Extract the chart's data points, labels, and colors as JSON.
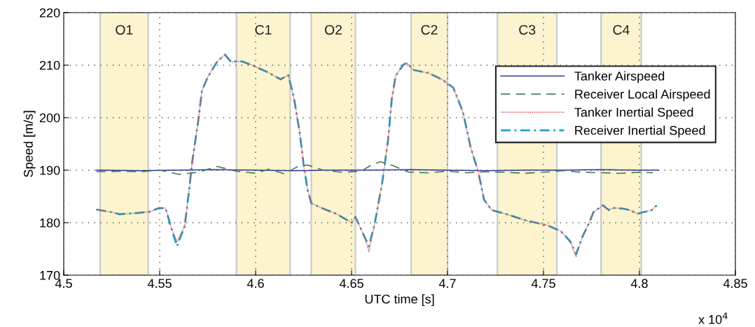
{
  "chart_data": {
    "type": "line",
    "xlabel": "UTC time [s]",
    "ylabel": "Speed [m/s]",
    "annotations": [
      "x 10$^{4}$"
    ],
    "xlim": [
      4.5,
      4.85
    ],
    "xticks": [
      4.5,
      4.55,
      4.6,
      4.65,
      4.7,
      4.75,
      4.8,
      4.85
    ],
    "ylim": [
      170,
      220
    ],
    "yticks": [
      170,
      180,
      190,
      200,
      210,
      220
    ],
    "grid": true,
    "legend": "top right",
    "bands": [
      {
        "axis": "x",
        "from": 4.519,
        "to": 4.544,
        "label": "O1",
        "color": "#fbf4cf"
      },
      {
        "axis": "x",
        "from": 4.59,
        "to": 4.618,
        "label": "C1",
        "color": "#fbf4cf"
      },
      {
        "axis": "x",
        "from": 4.629,
        "to": 4.652,
        "label": "O2",
        "color": "#fbf4cf"
      },
      {
        "axis": "x",
        "from": 4.681,
        "to": 4.7,
        "label": "C2",
        "color": "#fbf4cf"
      },
      {
        "axis": "x",
        "from": 4.726,
        "to": 4.757,
        "label": "C3",
        "color": "#fbf4cf"
      },
      {
        "axis": "x",
        "from": 4.78,
        "to": 4.801,
        "label": "C4",
        "color": "#fbf4cf"
      }
    ],
    "series": [
      {
        "name": "Tanker Airspeed",
        "color": "#3434a0",
        "line_style": "solid",
        "x": [
          4.517,
          4.54,
          4.56,
          4.58,
          4.6,
          4.62,
          4.64,
          4.66,
          4.68,
          4.7,
          4.72,
          4.74,
          4.76,
          4.78,
          4.8,
          4.81
        ],
        "values": [
          190.0,
          189.9,
          190.0,
          190.1,
          190.0,
          189.9,
          190.0,
          190.0,
          190.1,
          190.0,
          189.9,
          190.0,
          190.0,
          190.1,
          190.0,
          190.0
        ]
      },
      {
        "name": "Receiver Local Airspeed",
        "color": "#3f7f4f",
        "line_style": "dashed",
        "x": [
          4.517,
          4.53,
          4.54,
          4.55,
          4.56,
          4.565,
          4.57,
          4.58,
          4.59,
          4.6,
          4.607,
          4.615,
          4.622,
          4.627,
          4.635,
          4.645,
          4.655,
          4.66,
          4.665,
          4.672,
          4.68,
          4.69,
          4.7,
          4.71,
          4.72,
          4.73,
          4.74,
          4.75,
          4.76,
          4.77,
          4.78,
          4.79,
          4.8,
          4.807
        ],
        "values": [
          189.7,
          189.8,
          189.7,
          190.0,
          189.2,
          189.4,
          189.6,
          190.7,
          189.8,
          189.4,
          190.2,
          189.3,
          190.7,
          191.0,
          190.0,
          189.6,
          189.8,
          190.9,
          191.6,
          190.8,
          189.6,
          189.5,
          189.8,
          189.5,
          189.7,
          189.6,
          189.4,
          189.6,
          189.9,
          189.6,
          189.5,
          189.4,
          189.6,
          189.5
        ]
      },
      {
        "name": "Tanker Inertial Speed",
        "color": "#e8403c",
        "line_style": "dotted",
        "x": [
          4.517,
          4.525,
          4.529,
          4.54,
          4.545,
          4.549,
          4.553,
          4.556,
          4.559,
          4.563,
          4.565,
          4.567,
          4.57,
          4.572,
          4.575,
          4.58,
          4.584,
          4.587,
          4.593,
          4.598,
          4.606,
          4.613,
          4.617,
          4.62,
          4.623,
          4.625,
          4.627,
          4.629,
          4.635,
          4.642,
          4.65,
          4.652,
          4.654,
          4.657,
          4.659,
          4.662,
          4.666,
          4.669,
          4.671,
          4.673,
          4.677,
          4.679,
          4.682,
          4.69,
          4.697,
          4.703,
          4.708,
          4.712,
          4.716,
          4.719,
          4.723,
          4.73,
          4.741,
          4.752,
          4.759,
          4.764,
          4.767,
          4.77,
          4.774,
          4.776,
          4.781,
          4.784,
          4.786,
          4.791,
          4.795,
          4.799,
          4.802,
          4.806,
          4.809
        ],
        "values": [
          182.5,
          182.0,
          181.6,
          181.9,
          182.1,
          182.7,
          182.8,
          179.1,
          176.4,
          179.3,
          185.1,
          191.7,
          199.1,
          205.1,
          207.7,
          210.7,
          212.0,
          210.7,
          210.7,
          210.0,
          208.7,
          207.3,
          208.1,
          203.7,
          197.1,
          191.1,
          186.4,
          183.7,
          182.7,
          181.7,
          180.0,
          181.1,
          179.5,
          177.1,
          174.5,
          179.7,
          187.7,
          195.7,
          203.7,
          208.0,
          210.1,
          210.4,
          209.1,
          208.5,
          207.3,
          205.7,
          201.1,
          194.4,
          189.7,
          184.4,
          182.4,
          181.7,
          180.4,
          179.5,
          178.4,
          176.4,
          173.5,
          177.1,
          180.1,
          182.0,
          183.3,
          182.4,
          182.8,
          182.7,
          182.4,
          181.7,
          182.0,
          182.3,
          183.3
        ]
      },
      {
        "name": "Receiver Inertial Speed",
        "color": "#1ea0c8",
        "line_style": "dashdot",
        "x": [
          4.517,
          4.525,
          4.529,
          4.54,
          4.545,
          4.549,
          4.553,
          4.556,
          4.559,
          4.563,
          4.565,
          4.567,
          4.57,
          4.572,
          4.575,
          4.58,
          4.584,
          4.587,
          4.593,
          4.598,
          4.606,
          4.613,
          4.617,
          4.62,
          4.623,
          4.625,
          4.627,
          4.629,
          4.635,
          4.642,
          4.65,
          4.652,
          4.654,
          4.657,
          4.659,
          4.662,
          4.666,
          4.669,
          4.671,
          4.673,
          4.677,
          4.679,
          4.682,
          4.69,
          4.697,
          4.703,
          4.708,
          4.712,
          4.716,
          4.719,
          4.723,
          4.73,
          4.741,
          4.752,
          4.759,
          4.764,
          4.767,
          4.77,
          4.774,
          4.776,
          4.781,
          4.784,
          4.786,
          4.791,
          4.795,
          4.799,
          4.802,
          4.806,
          4.809
        ],
        "values": [
          182.5,
          182.0,
          181.6,
          181.9,
          182.1,
          182.7,
          182.8,
          179.1,
          175.5,
          179.3,
          185.1,
          191.7,
          199.1,
          205.1,
          207.7,
          210.7,
          212.0,
          210.7,
          210.7,
          210.0,
          208.7,
          207.3,
          208.1,
          203.7,
          197.1,
          191.1,
          186.4,
          183.7,
          182.7,
          181.7,
          180.0,
          181.1,
          179.5,
          177.1,
          175.5,
          179.7,
          187.7,
          195.7,
          203.7,
          208.0,
          210.1,
          210.4,
          209.1,
          208.5,
          207.3,
          205.7,
          201.1,
          194.4,
          189.7,
          184.4,
          182.4,
          181.7,
          180.4,
          179.5,
          178.4,
          176.4,
          174.0,
          177.1,
          180.1,
          182.0,
          183.3,
          182.4,
          182.8,
          182.7,
          182.4,
          181.7,
          182.0,
          182.3,
          183.3
        ]
      }
    ]
  }
}
